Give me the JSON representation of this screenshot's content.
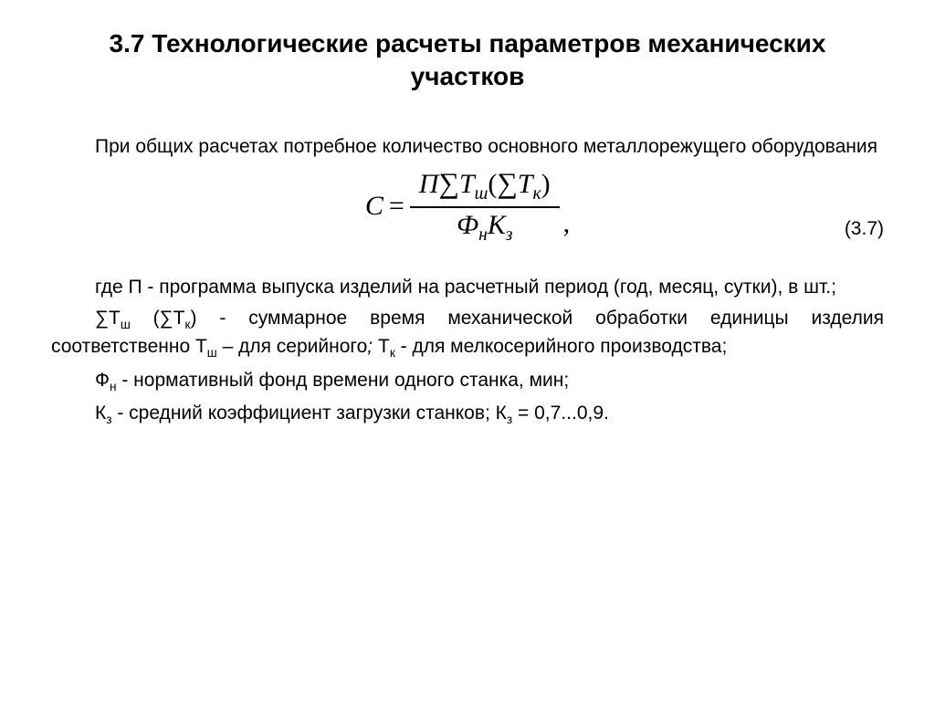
{
  "title": "3.7 Технологические расчеты параметров механических участков",
  "intro": "При общих расчетах потребное количество основного металлорежущего оборудования",
  "formula": {
    "lhs": "C",
    "eq": "=",
    "num_P": "П",
    "num_sum1": "∑",
    "num_T1": "T",
    "num_T1_sub": "ш",
    "num_lpar": "(",
    "num_sum2": "∑",
    "num_T2": "T",
    "num_T2_sub": "к",
    "num_rpar": ")",
    "den_Phi": "Ф",
    "den_Phi_sub": "н",
    "den_K": "К",
    "den_K_sub": "з",
    "comma": ",",
    "eqnum": "(3.7)"
  },
  "p1a": "где П - программа выпуска изделий на расчетный период (год, месяц, сутки), в шт.;",
  "p2_sym1": "∑Т",
  "p2_sub1": "ш",
  "p2_mid1": " (∑Т",
  "p2_sub2": "к",
  "p2_mid2": ") - суммарное время механической обработки  единицы изделия соответственно  Т",
  "p2_sub3": "ш",
  "p2_mid3": " – для серийного",
  "p2_semi_ital": ";",
  "p2_mid4": " Т",
  "p2_sub4": "к",
  "p2_end": " - для мелкосерийного производства;",
  "p3a": "Ф",
  "p3a_sub": "н",
  "p3b": " - нормативный фонд времени одного станка, мин;",
  "p4a": "К",
  "p4a_sub": "з",
  "p4b": " - средний коэффициент загрузки станков; К",
  "p4b_sub": "з",
  "p4c": " = 0,7...0,9."
}
